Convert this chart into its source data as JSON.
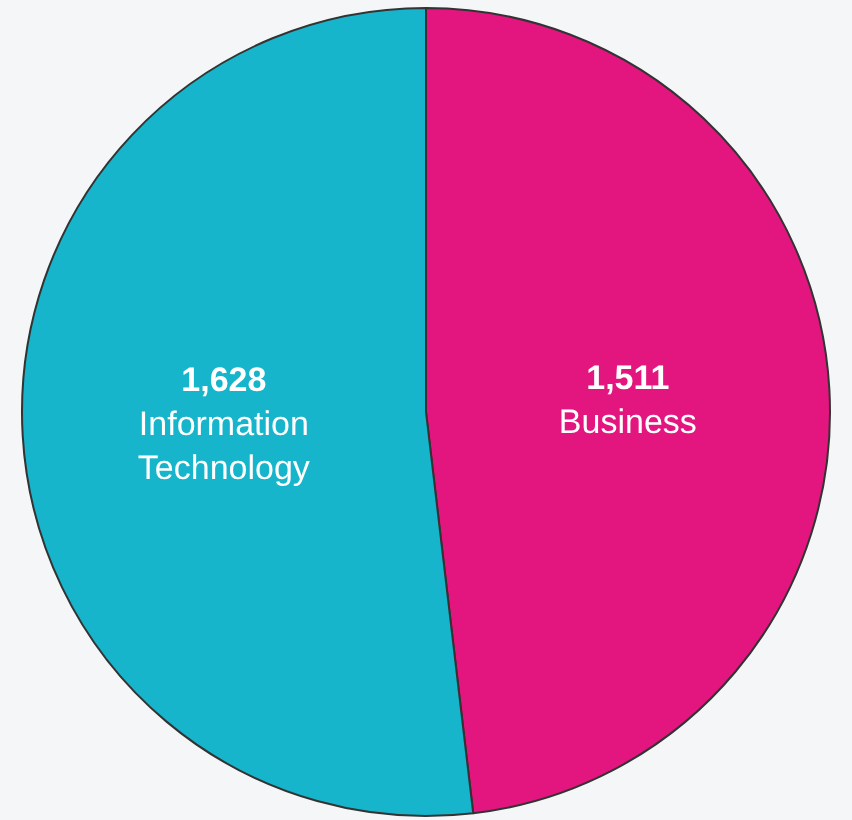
{
  "chart_data": {
    "type": "pie",
    "categories": [
      "Business",
      "Information Technology"
    ],
    "values": [
      1511,
      1628
    ],
    "value_labels": [
      "1,511",
      "1,628"
    ],
    "colors": [
      "#e3157f",
      "#16b5cb"
    ],
    "legend": false
  }
}
